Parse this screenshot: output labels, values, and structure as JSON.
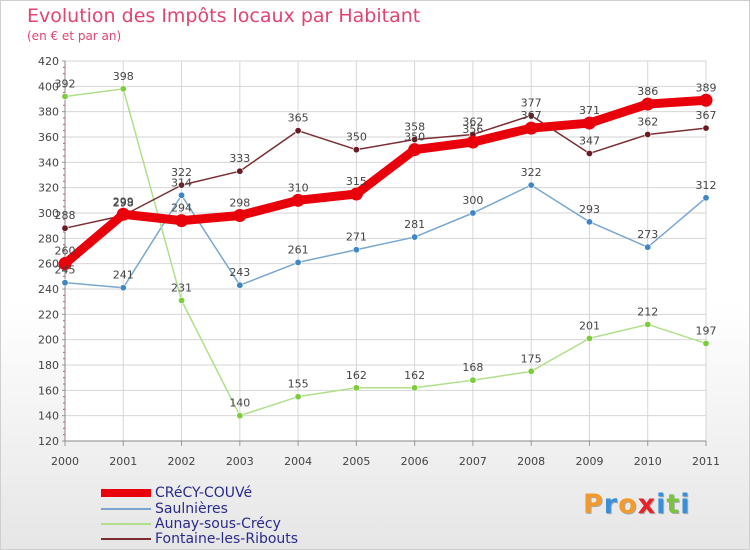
{
  "header": {
    "title": "Evolution des Impôts locaux par Habitant",
    "subtitle": "(en € et par an)"
  },
  "chart_data": {
    "type": "line",
    "title": "Evolution des Impôts locaux par Habitant",
    "subtitle": "(en € et par an)",
    "xlabel": "",
    "ylabel": "",
    "x": [
      "2000",
      "2001",
      "2002",
      "2003",
      "2004",
      "2005",
      "2006",
      "2007",
      "2008",
      "2009",
      "2010",
      "2011"
    ],
    "yticks": [
      120,
      140,
      160,
      180,
      200,
      220,
      240,
      260,
      280,
      300,
      320,
      340,
      360,
      380,
      400,
      420
    ],
    "ylim": [
      120,
      420
    ],
    "grid": true,
    "legend_position": "bottom-left",
    "series": [
      {
        "name": "CRéCY-COUVé",
        "color": "#e8000b",
        "marker": "#e8000b",
        "emphasis": true,
        "values": [
          260,
          299,
          294,
          298,
          310,
          315,
          350,
          356,
          367,
          371,
          386,
          389
        ]
      },
      {
        "name": "Saulnières",
        "color": "#7aa6cf",
        "marker": "#3f86c7",
        "emphasis": false,
        "values": [
          245,
          241,
          314,
          243,
          261,
          271,
          281,
          300,
          322,
          293,
          273,
          312
        ]
      },
      {
        "name": "Aunay-sous-Crécy",
        "color": "#b1df8c",
        "marker": "#7ccc3c",
        "emphasis": false,
        "values": [
          392,
          398,
          231,
          140,
          155,
          162,
          162,
          168,
          175,
          201,
          212,
          197
        ]
      },
      {
        "name": "Fontaine-les-Ribouts",
        "color": "#7a2e34",
        "marker": "#6a1a22",
        "emphasis": false,
        "values": [
          288,
          298,
          322,
          333,
          365,
          350,
          358,
          362,
          377,
          347,
          362,
          367
        ]
      }
    ]
  },
  "logo": {
    "letters": [
      "P",
      "r",
      "o",
      "x",
      "i",
      "t",
      "i"
    ],
    "colors": [
      "#f29a2e",
      "#3a8fd6",
      "#f29a2e",
      "#e8222a",
      "#3a8fd6",
      "#7cc242",
      "#3a8fd6"
    ]
  }
}
